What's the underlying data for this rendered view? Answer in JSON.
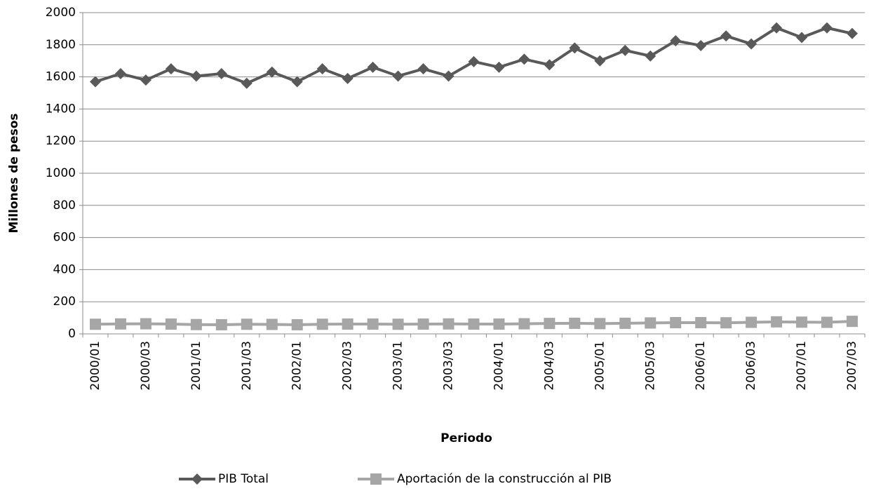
{
  "chart_data": {
    "type": "line",
    "categories": [
      "2000/01",
      null,
      "2000/03",
      null,
      "2001/01",
      null,
      "2001/03",
      null,
      "2002/01",
      null,
      "2002/03",
      null,
      "2003/01",
      null,
      "2003/03",
      null,
      "2004/01",
      null,
      "2004/03",
      null,
      "2005/01",
      null,
      "2005/03",
      null,
      "2006/01",
      null,
      "2006/03",
      null,
      "2007/01",
      null,
      "2007/03"
    ],
    "series": [
      {
        "name": "PIB Total",
        "color": "#595959",
        "marker": "diamond",
        "values": [
          1570,
          1620,
          1580,
          1650,
          1605,
          1620,
          1560,
          1630,
          1570,
          1650,
          1590,
          1660,
          1605,
          1650,
          1605,
          1695,
          1660,
          1710,
          1675,
          1780,
          1700,
          1765,
          1730,
          1825,
          1795,
          1855,
          1805,
          1905,
          1845,
          1905,
          1870
        ]
      },
      {
        "name": "Aportación de la construcción al PIB",
        "color": "#a6a6a6",
        "marker": "square",
        "values": [
          60,
          62,
          63,
          61,
          58,
          57,
          60,
          59,
          57,
          60,
          61,
          61,
          60,
          61,
          62,
          61,
          61,
          63,
          65,
          66,
          64,
          66,
          68,
          70,
          70,
          69,
          72,
          75,
          73,
          72,
          78
        ]
      }
    ],
    "y_label": "Millones de pesos",
    "x_label": "Periodo",
    "ylim": [
      0,
      2000
    ],
    "yticks": [
      0,
      200,
      400,
      600,
      800,
      1000,
      1200,
      1400,
      1600,
      1800,
      2000
    ],
    "grid": true,
    "legend": "bottom"
  }
}
